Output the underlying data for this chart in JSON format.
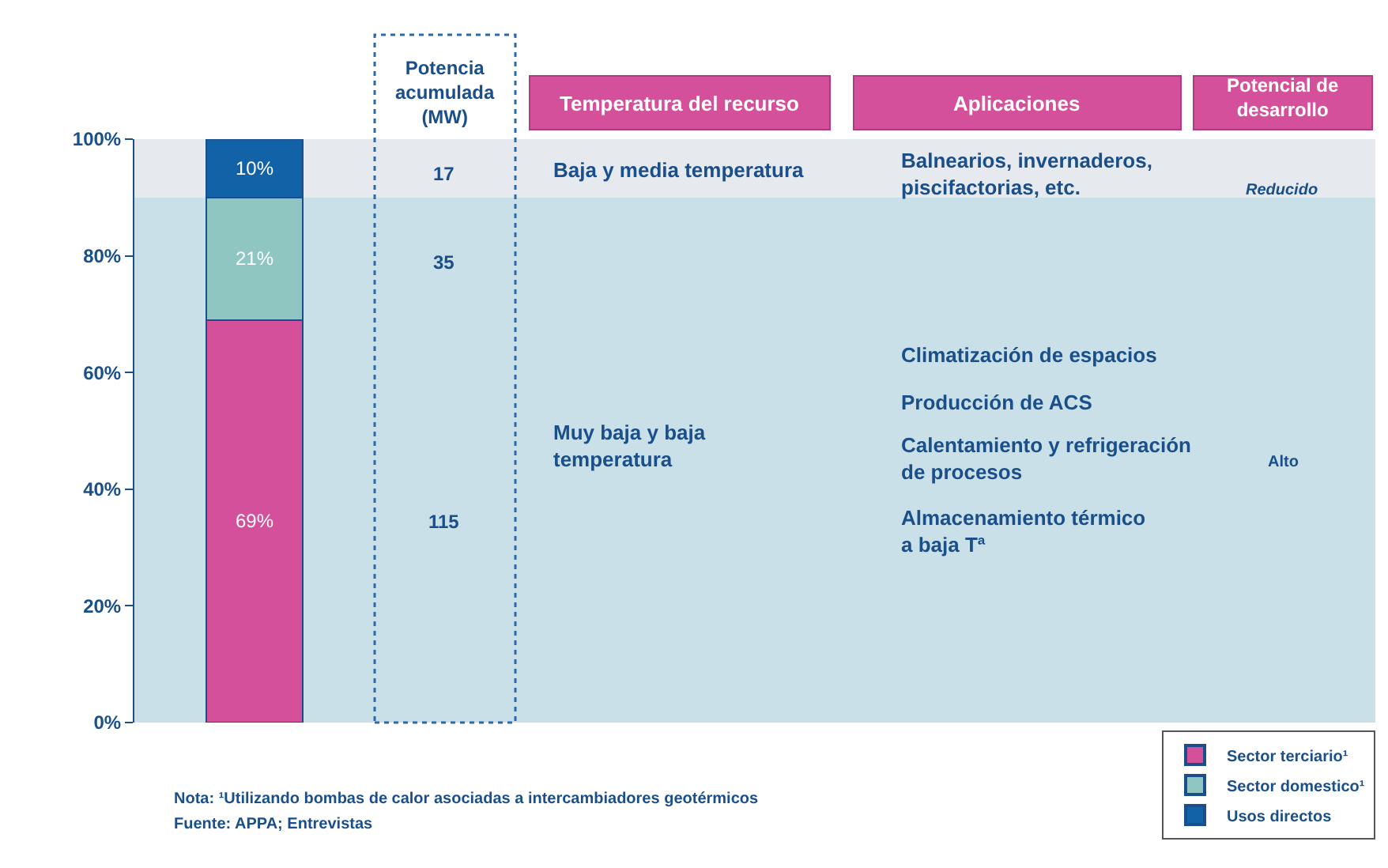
{
  "chart_data": {
    "type": "bar",
    "stacked": true,
    "categories": [
      null
    ],
    "series": [
      {
        "name": "Sector terciario¹",
        "color": "#d4509a",
        "values": [
          69
        ],
        "value_labels": [
          "69%"
        ]
      },
      {
        "name": "Sector domestico¹",
        "color": "#8fc6c2",
        "values": [
          21
        ],
        "value_labels": [
          "21%"
        ]
      },
      {
        "name": "Usos directos",
        "color": "#1262a8",
        "values": [
          10
        ],
        "value_labels": [
          "10%"
        ]
      }
    ],
    "ylim": [
      0,
      100
    ],
    "yticks": [
      {
        "value": 0,
        "label": "0%"
      },
      {
        "value": 20,
        "label": "20%"
      },
      {
        "value": 40,
        "label": "40%"
      },
      {
        "value": 60,
        "label": "60%"
      },
      {
        "value": 80,
        "label": "80%"
      },
      {
        "value": 100,
        "label": "100%"
      }
    ],
    "bands": [
      {
        "axis": "y",
        "from": 90,
        "to": 100,
        "color": "#e6eaee"
      },
      {
        "axis": "y",
        "from": 0,
        "to": 90,
        "color": "#c9e0e8"
      }
    ],
    "legend": "bottom right",
    "grid": false,
    "annotations": [
      "Potencia\nacumulada\n(MW)",
      "Temperatura del recurso",
      "Aplicaciones",
      "Potencial de\ndesarrollo",
      "17",
      "35",
      "115",
      "Baja y media temperatura",
      "Muy baja y baja\ntemperatura",
      "Balnearios, invernaderos,\npiscifactorias, etc.",
      "Climatización de espacios",
      "Producción de ACS",
      "Calentamiento y refrigeración\nde procesos",
      "Almacenamiento térmico\na baja Tª",
      "Reducido",
      "Alto",
      "Nota: ¹Utilizando bombas de calor asociadas a intercambiadores geotérmicos",
      "Fuente: APPA; Entrevistas"
    ]
  }
}
